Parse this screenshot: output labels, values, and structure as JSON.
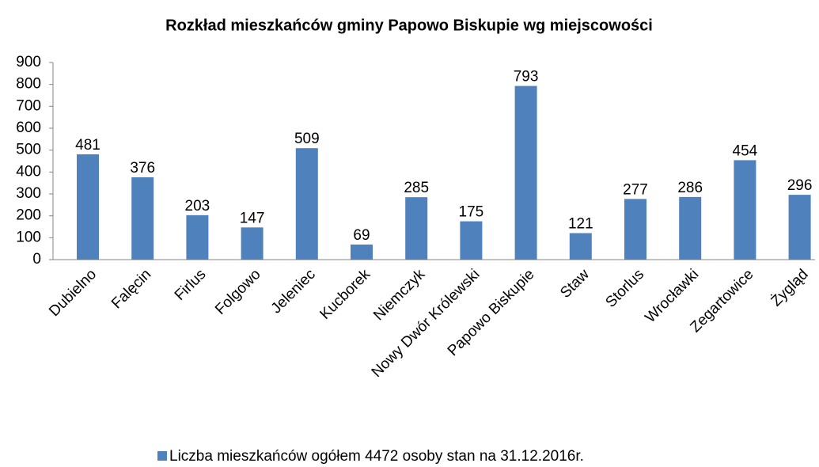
{
  "chart_data": {
    "type": "bar",
    "title": "Rozkład mieszkańców gminy Papowo Biskupie wg miejscowości",
    "categories": [
      "Dubielno",
      "Falęcin",
      "Firlus",
      "Folgowo",
      "Jeleniec",
      "Kucborek",
      "Niemczyk",
      "Nowy Dwór Królewski",
      "Papowo Biskupie",
      "Staw",
      "Storlus",
      "Wrocławki",
      "Zegartowice",
      "Żygląd"
    ],
    "series": [
      {
        "name": "Liczba mieszkańców ogółem 4472 osoby stan na 31.12.2016r.",
        "color": "#4f81bd",
        "values": [
          481,
          376,
          203,
          147,
          509,
          69,
          285,
          175,
          793,
          121,
          277,
          286,
          454,
          296
        ]
      }
    ],
    "ylim": [
      0,
      900
    ],
    "yticks": [
      0,
      100,
      200,
      300,
      400,
      500,
      600,
      700,
      800,
      900
    ],
    "grid": false,
    "legend": "bottom"
  }
}
